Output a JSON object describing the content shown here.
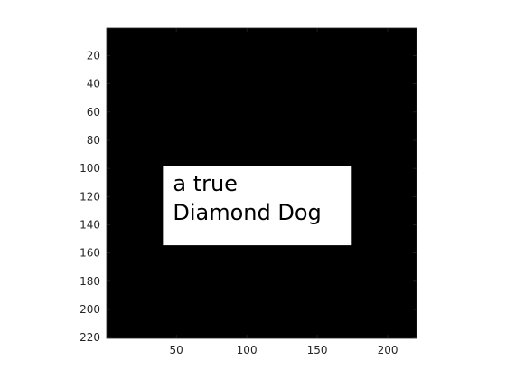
{
  "chart_data": {
    "type": "heatmap",
    "title": "",
    "xlabel": "",
    "ylabel": "",
    "xlim": [
      0.5,
      220.5
    ],
    "ylim": [
      0.5,
      220.5
    ],
    "y_reversed": true,
    "grid": false,
    "legend": "none",
    "x_ticks": [
      50,
      100,
      150,
      200
    ],
    "y_ticks": [
      20,
      40,
      60,
      80,
      100,
      120,
      140,
      160,
      180,
      200,
      220
    ],
    "background_value": 0,
    "image_regions": [
      {
        "value": 1,
        "x_range": [
          41,
          174
        ],
        "y_range": [
          99,
          154
        ],
        "text_lines": [
          "a true",
          "Diamond Dog"
        ]
      }
    ],
    "colors": {
      "low": "#000000",
      "high": "#ffffff"
    }
  }
}
